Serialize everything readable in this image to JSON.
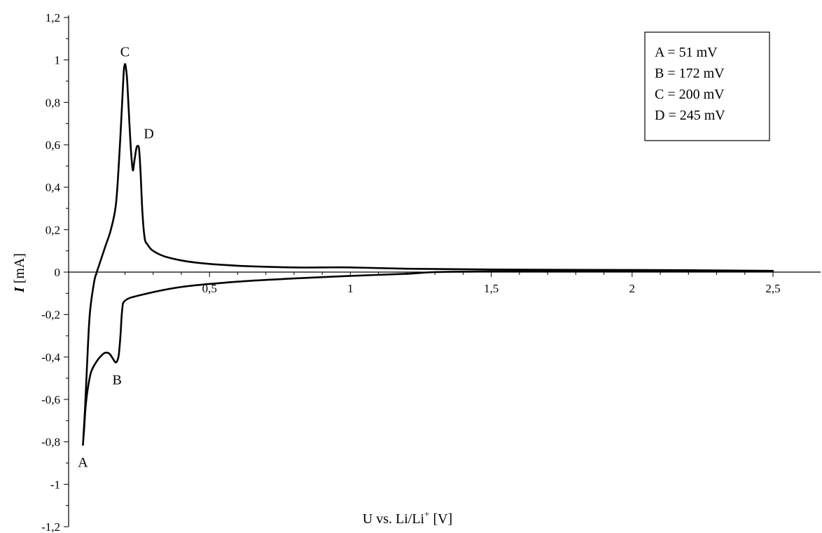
{
  "chart_data": {
    "type": "line",
    "title": "",
    "xlabel": {
      "main": "U vs. Li/Li",
      "sup": "+",
      "unit": " [V]"
    },
    "ylabel": {
      "symbol": "I",
      "unit": " [mA]"
    },
    "xlim": [
      0,
      2.5
    ],
    "ylim": [
      -1.2,
      1.2
    ],
    "x_ticks": [
      0.5,
      1,
      1.5,
      2,
      2.5
    ],
    "x_tick_labels": [
      "0,5",
      "1",
      "1,5",
      "2",
      "2,5"
    ],
    "y_ticks": [
      -1.2,
      -1,
      -0.8,
      -0.6,
      -0.4,
      -0.2,
      0,
      0.2,
      0.4,
      0.6,
      0.8,
      1,
      1.2
    ],
    "y_tick_labels": [
      "-1,2",
      "-1",
      "-0,8",
      "-0,6",
      "-0,4",
      "-0,2",
      "0",
      "0,2",
      "0,4",
      "0,6",
      "0,8",
      "1",
      "1,2"
    ],
    "grid": false,
    "legend_position": "top-right",
    "series": [
      {
        "color": "#000000",
        "points": [
          [
            0.051,
            -0.81
          ],
          [
            0.055,
            -0.74
          ],
          [
            0.06,
            -0.64
          ],
          [
            0.068,
            -0.55
          ],
          [
            0.08,
            -0.47
          ],
          [
            0.1,
            -0.42
          ],
          [
            0.115,
            -0.395
          ],
          [
            0.13,
            -0.38
          ],
          [
            0.145,
            -0.385
          ],
          [
            0.158,
            -0.41
          ],
          [
            0.166,
            -0.425
          ],
          [
            0.172,
            -0.42
          ],
          [
            0.178,
            -0.39
          ],
          [
            0.184,
            -0.3
          ],
          [
            0.19,
            -0.18
          ],
          [
            0.2,
            -0.135
          ],
          [
            0.25,
            -0.11
          ],
          [
            0.4,
            -0.07
          ],
          [
            0.6,
            -0.045
          ],
          [
            0.8,
            -0.03
          ],
          [
            1.0,
            -0.018
          ],
          [
            1.2,
            -0.008
          ],
          [
            1.3,
            0.0
          ],
          [
            1.5,
            0.003
          ],
          [
            2.0,
            0.005
          ],
          [
            2.5,
            0.006
          ],
          [
            2.0,
            0.01
          ],
          [
            1.5,
            0.012
          ],
          [
            1.2,
            0.016
          ],
          [
            1.0,
            0.022
          ],
          [
            0.9,
            0.022
          ],
          [
            0.8,
            0.022
          ],
          [
            0.6,
            0.03
          ],
          [
            0.45,
            0.045
          ],
          [
            0.35,
            0.07
          ],
          [
            0.3,
            0.1
          ],
          [
            0.28,
            0.13
          ],
          [
            0.27,
            0.16
          ],
          [
            0.262,
            0.28
          ],
          [
            0.255,
            0.48
          ],
          [
            0.25,
            0.58
          ],
          [
            0.245,
            0.595
          ],
          [
            0.24,
            0.58
          ],
          [
            0.233,
            0.52
          ],
          [
            0.228,
            0.48
          ],
          [
            0.222,
            0.56
          ],
          [
            0.215,
            0.72
          ],
          [
            0.208,
            0.9
          ],
          [
            0.203,
            0.965
          ],
          [
            0.2,
            0.98
          ],
          [
            0.196,
            0.95
          ],
          [
            0.19,
            0.8
          ],
          [
            0.18,
            0.55
          ],
          [
            0.168,
            0.32
          ],
          [
            0.15,
            0.2
          ],
          [
            0.13,
            0.12
          ],
          [
            0.11,
            0.04
          ],
          [
            0.1,
            0.0
          ],
          [
            0.09,
            -0.05
          ],
          [
            0.075,
            -0.2
          ],
          [
            0.065,
            -0.45
          ],
          [
            0.058,
            -0.65
          ],
          [
            0.052,
            -0.79
          ]
        ]
      }
    ],
    "annotations": [
      {
        "label": "A",
        "x": 0.051,
        "y": -0.81,
        "anchor": "below"
      },
      {
        "label": "B",
        "x": 0.172,
        "y": -0.42,
        "anchor": "below"
      },
      {
        "label": "C",
        "x": 0.2,
        "y": 0.98,
        "anchor": "above"
      },
      {
        "label": "D",
        "x": 0.245,
        "y": 0.595,
        "anchor": "above-right"
      }
    ],
    "legend_entries": [
      "A = 51 mV",
      "B = 172 mV",
      "C = 200 mV",
      "D = 245 mV"
    ]
  }
}
